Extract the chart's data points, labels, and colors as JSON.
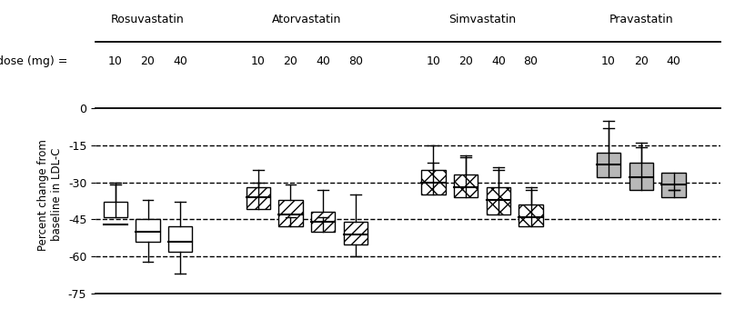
{
  "ylabel": "Percent change from\nbaseline in LDL-C",
  "ylim": [
    -75,
    5
  ],
  "yticks": [
    0,
    -15,
    -30,
    -45,
    -60,
    -75
  ],
  "dashed_lines": [
    -15,
    -30,
    -45,
    -60
  ],
  "groups": [
    {
      "name": "Rosuvastatin",
      "doses": [
        "10",
        "20",
        "40"
      ],
      "hatch": "",
      "facecolor": "white",
      "boxes": [
        {
          "whislo": -31,
          "q1": -44,
          "med": -47,
          "q3": -38,
          "whishi": -30
        },
        {
          "whislo": -62,
          "q1": -54,
          "med": -50,
          "q3": -45,
          "whishi": -37
        },
        {
          "whislo": -67,
          "q1": -58,
          "med": -54,
          "q3": -48,
          "whishi": -38
        }
      ]
    },
    {
      "name": "Atorvastatin",
      "doses": [
        "10",
        "20",
        "40",
        "80"
      ],
      "hatch": "///",
      "facecolor": "white",
      "boxes": [
        {
          "whislo": -30,
          "q1": -41,
          "med": -36,
          "q3": -32,
          "whishi": -25
        },
        {
          "whislo": -44,
          "q1": -48,
          "med": -43,
          "q3": -37,
          "whishi": -31
        },
        {
          "whislo": -44,
          "q1": -50,
          "med": -46,
          "q3": -42,
          "whishi": -33
        },
        {
          "whislo": -60,
          "q1": -55,
          "med": -51,
          "q3": -46,
          "whishi": -35
        }
      ]
    },
    {
      "name": "Simvastatin",
      "doses": [
        "10",
        "20",
        "40",
        "80"
      ],
      "hatch": "xx",
      "facecolor": "white",
      "boxes": [
        {
          "whislo": -15,
          "q1": -35,
          "med": -30,
          "q3": -25,
          "whishi": -22
        },
        {
          "whislo": -20,
          "q1": -36,
          "med": -32,
          "q3": -27,
          "whishi": -19
        },
        {
          "whislo": -25,
          "q1": -43,
          "med": -37,
          "q3": -32,
          "whishi": -24
        },
        {
          "whislo": -32,
          "q1": -48,
          "med": -44,
          "q3": -39,
          "whishi": -33
        }
      ]
    },
    {
      "name": "Pravastatin",
      "doses": [
        "10",
        "20",
        "40"
      ],
      "hatch": "",
      "facecolor": "#b8b8b8",
      "boxes": [
        {
          "whislo": -8,
          "q1": -28,
          "med": -23,
          "q3": -18,
          "whishi": -5
        },
        {
          "whislo": -16,
          "q1": -33,
          "med": -28,
          "q3": -22,
          "whishi": -14
        },
        {
          "whislo": -33,
          "q1": -36,
          "med": -31,
          "q3": -26,
          "whishi": -33
        }
      ]
    }
  ]
}
